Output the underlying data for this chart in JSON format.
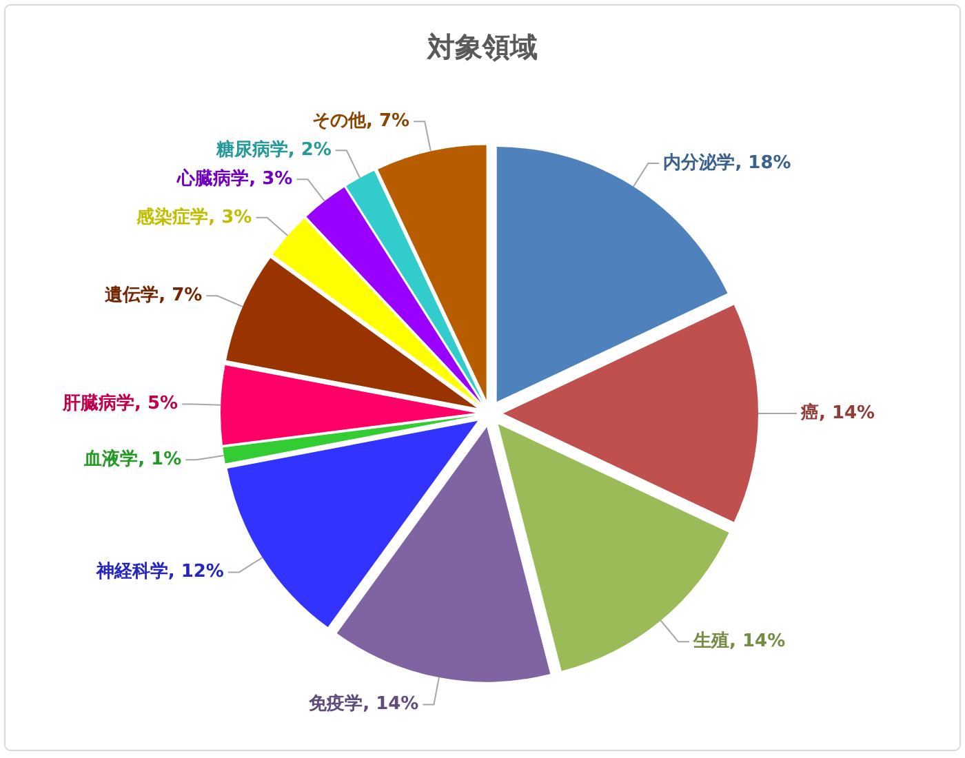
{
  "chart_data": {
    "type": "pie",
    "title": "対象領域",
    "categories": [
      "内分泌学",
      "癌",
      "生殖",
      "免疫学",
      "神経科学",
      "血液学",
      "肝臓病学",
      "遺伝学",
      "感染症学",
      "心臓病学",
      "糖尿病学",
      "その他"
    ],
    "values": [
      18,
      14,
      14,
      14,
      12,
      1,
      5,
      7,
      3,
      3,
      2,
      7
    ],
    "colors": [
      "#4f81bd",
      "#c0504d",
      "#9bbb59",
      "#8064a2",
      "#3333ff",
      "#33cc33",
      "#ff0066",
      "#993300",
      "#ffff00",
      "#9900ff",
      "#33cccc",
      "#b85c00"
    ],
    "value_labels": [
      "18%",
      "14%",
      "14%",
      "14%",
      "12%",
      "1%",
      "5%",
      "7%",
      "3%",
      "3%",
      "2%",
      "7%"
    ]
  }
}
